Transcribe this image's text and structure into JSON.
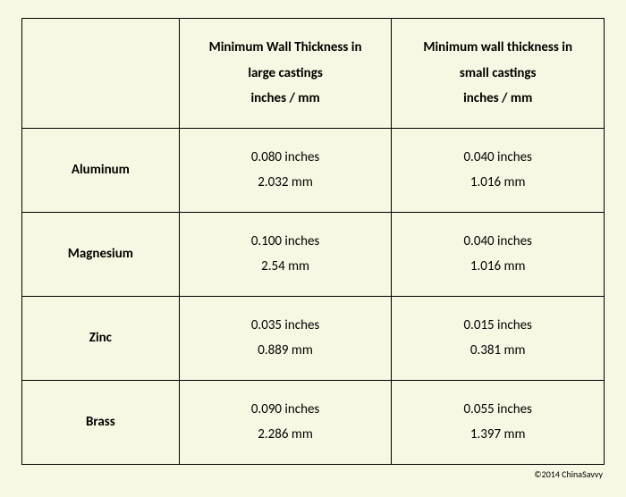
{
  "table": {
    "header": {
      "col1": "",
      "col2_line1": "Minimum Wall Thickness in",
      "col2_line2": "large castings",
      "col2_line3": "inches / mm",
      "col3_line1": "Minimum wall thickness in",
      "col3_line2": "small castings",
      "col3_line3": "inches / mm"
    },
    "rows": [
      {
        "material": "Aluminum",
        "large_in": "0.080 inches",
        "large_mm": "2.032 mm",
        "small_in": "0.040 inches",
        "small_mm": "1.016 mm"
      },
      {
        "material": "Magnesium",
        "large_in": "0.100 inches",
        "large_mm": "2.54 mm",
        "small_in": "0.040 inches",
        "small_mm": "1.016 mm"
      },
      {
        "material": "Zinc",
        "large_in": "0.035 inches",
        "large_mm": "0.889 mm",
        "small_in": "0.015 inches",
        "small_mm": "0.381 mm"
      },
      {
        "material": "Brass",
        "large_in": "0.090 inches",
        "large_mm": "2.286 mm",
        "small_in": "0.055 inches",
        "small_mm": "1.397 mm"
      }
    ]
  },
  "copyright": "©2014 ChinaSavvy"
}
